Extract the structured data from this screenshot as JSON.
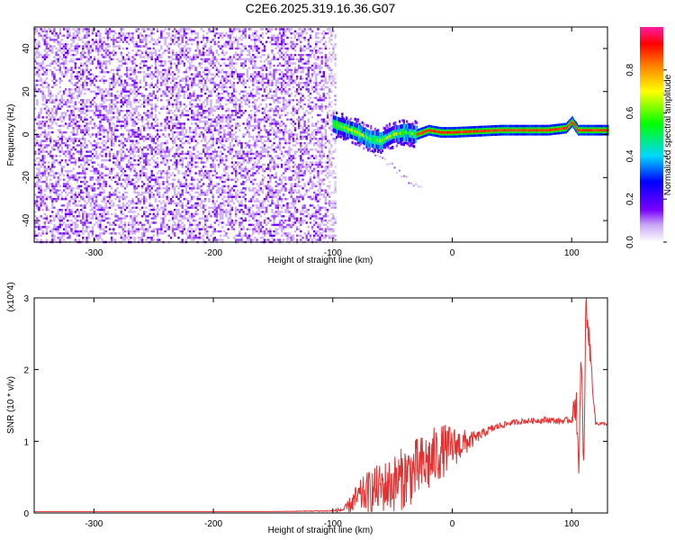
{
  "title": "C2E6.2025.319.16.36.G07",
  "colors": {
    "snr_line": "#e53030",
    "axis": "#000000"
  },
  "chart_data": [
    {
      "type": "heatmap",
      "xlabel": "Height of straight line (km)",
      "ylabel": "Frequency (Hz)",
      "xlim": [
        -350,
        130
      ],
      "ylim": [
        -50,
        50
      ],
      "xticks": [
        -300,
        -200,
        -100,
        0,
        100
      ],
      "yticks": [
        -40,
        -20,
        0,
        20,
        40
      ],
      "colorbar": {
        "label": "Normalized spectral amplitude",
        "range": [
          0,
          1
        ],
        "ticks": [
          0.0,
          0.2,
          0.4,
          0.6,
          0.8
        ],
        "colormap": "white-violet-blue-cyan-green-yellow-orange-red"
      },
      "regions": [
        {
          "name": "broadband noise",
          "x": [
            -350,
            -100
          ],
          "freq": [
            -50,
            50
          ],
          "amplitude": [
            0.0,
            0.15
          ]
        },
        {
          "name": "tone onset",
          "x": [
            -100,
            -30
          ],
          "freq_center": 3,
          "amplitude": [
            0.15,
            0.5
          ]
        },
        {
          "name": "stable tone",
          "x": [
            -30,
            130
          ],
          "freq_center": 1.5,
          "amplitude": [
            0.8,
            1.0
          ]
        }
      ],
      "tone_track": {
        "x": [
          -100,
          -90,
          -80,
          -70,
          -60,
          -50,
          -40,
          -30,
          -20,
          -10,
          0,
          20,
          40,
          60,
          80,
          95,
          100,
          105,
          110,
          130
        ],
        "freq": [
          5,
          3,
          1,
          -2,
          -3,
          0,
          1,
          0,
          2,
          1,
          1,
          1.5,
          2,
          2,
          2,
          3,
          6,
          2,
          2,
          2
        ]
      }
    },
    {
      "type": "line",
      "xlabel": "Height of straight line (km)",
      "ylabel": "SNR (10 * v/v)",
      "y_multiplier": "(x10^4)",
      "xlim": [
        -350,
        130
      ],
      "ylim": [
        0,
        3
      ],
      "xticks": [
        -300,
        -200,
        -100,
        0,
        100
      ],
      "yticks": [
        0,
        1,
        2,
        3
      ],
      "series": [
        {
          "x": [
            -350,
            -300,
            -250,
            -200,
            -150,
            -100,
            -90,
            -80,
            -70,
            -60,
            -50,
            -40,
            -30,
            -20,
            -10,
            0,
            10,
            20,
            30,
            40,
            50,
            60,
            70,
            80,
            90,
            100,
            104,
            106,
            108,
            110,
            112,
            120,
            130
          ],
          "y": [
            0.02,
            0.02,
            0.02,
            0.02,
            0.02,
            0.03,
            0.05,
            0.2,
            0.3,
            0.35,
            0.4,
            0.5,
            0.6,
            0.7,
            0.85,
            0.92,
            0.97,
            1.05,
            1.15,
            1.22,
            1.26,
            1.28,
            1.29,
            1.3,
            1.28,
            1.3,
            1.6,
            0.4,
            2.3,
            0.5,
            3.0,
            1.25,
            1.24
          ],
          "noise": [
            0,
            0,
            0,
            0,
            0,
            0.01,
            0.05,
            0.2,
            0.3,
            0.35,
            0.4,
            0.45,
            0.45,
            0.45,
            0.4,
            0.3,
            0.2,
            0.08,
            0.06,
            0.05,
            0.04,
            0.04,
            0.04,
            0.05,
            0.04,
            0.05,
            0.3,
            0.3,
            0.3,
            0.3,
            0.3,
            0.03,
            0.02
          ]
        }
      ]
    }
  ]
}
